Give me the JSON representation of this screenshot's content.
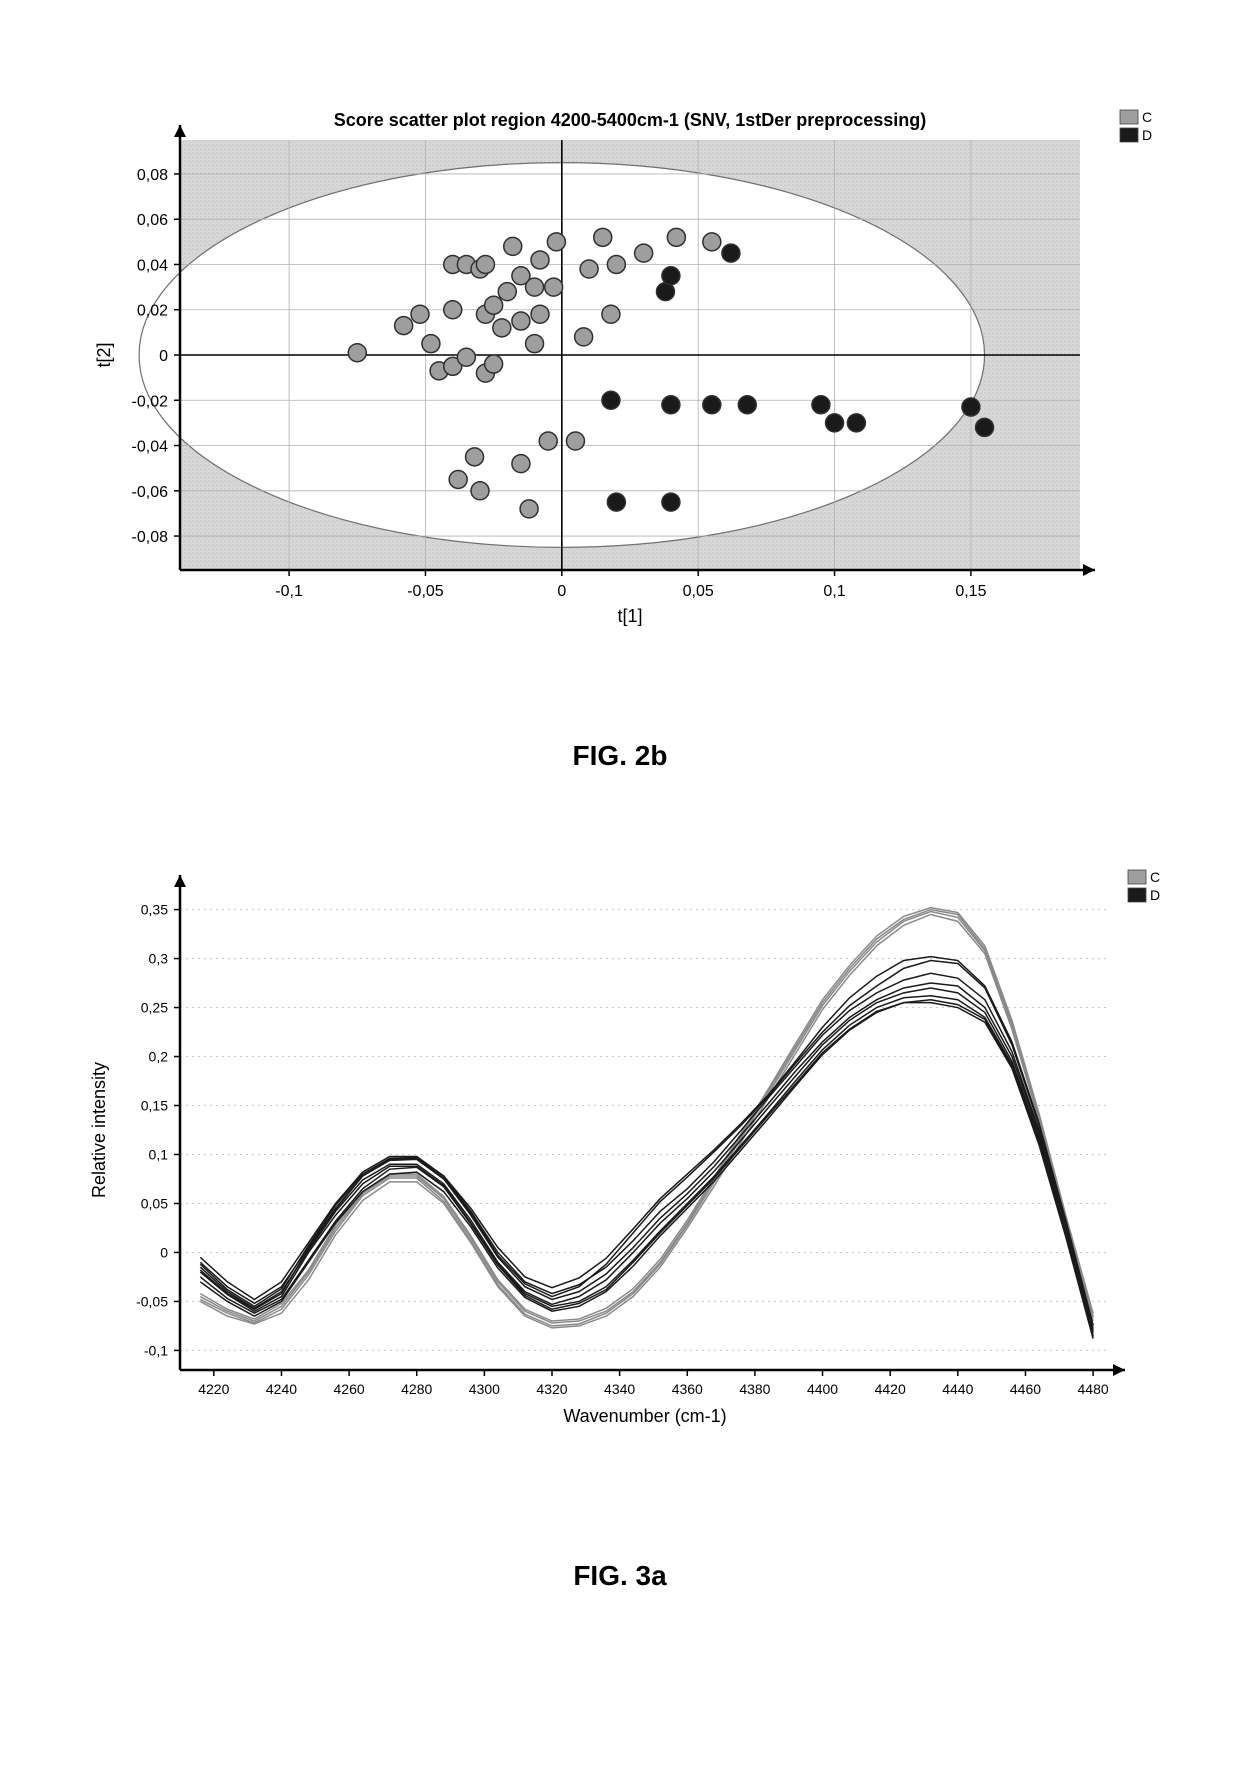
{
  "scatter": {
    "type": "scatter",
    "title": "Score scatter plot region 4200-5400cm-1 (SNV, 1stDer preprocessing)",
    "title_fontsize": 18,
    "title_fontweight": "bold",
    "xlabel": "t[1]",
    "ylabel": "t[2]",
    "label_fontsize": 18,
    "tick_fontsize": 16,
    "xlim": [
      -0.14,
      0.19
    ],
    "ylim": [
      -0.095,
      0.095
    ],
    "xticks": [
      -0.1,
      -0.05,
      0,
      0.05,
      0.1,
      0.15
    ],
    "xtick_labels": [
      "-0,1",
      "-0,05",
      "0",
      "0,05",
      "0,1",
      "0,15"
    ],
    "yticks": [
      -0.08,
      -0.06,
      -0.04,
      -0.02,
      0,
      0.02,
      0.04,
      0.06,
      0.08
    ],
    "ytick_labels": [
      "-0,08",
      "-0,06",
      "-0,04",
      "-0,02",
      "0",
      "0,02",
      "0,04",
      "0,06",
      "0,08"
    ],
    "background_color": "#d8d8d8",
    "ellipse_fill": "#ffffff",
    "ellipse_stroke": "#707070",
    "grid_color": "#b0b0b0",
    "axis_color": "#000000",
    "ellipse_rx": 0.155,
    "ellipse_ry": 0.085,
    "marker_radius": 9,
    "marker_stroke": "#303030",
    "marker_stroke_width": 1.5,
    "series": [
      {
        "label": "C",
        "color": "#9e9e9e",
        "points": [
          [
            -0.075,
            0.001
          ],
          [
            -0.058,
            0.013
          ],
          [
            -0.052,
            0.018
          ],
          [
            -0.048,
            0.005
          ],
          [
            -0.045,
            -0.007
          ],
          [
            -0.04,
            0.02
          ],
          [
            -0.04,
            -0.005
          ],
          [
            -0.04,
            0.04
          ],
          [
            -0.038,
            -0.055
          ],
          [
            -0.035,
            0.04
          ],
          [
            -0.035,
            -0.001
          ],
          [
            -0.032,
            -0.045
          ],
          [
            -0.03,
            0.038
          ],
          [
            -0.03,
            -0.06
          ],
          [
            -0.028,
            0.018
          ],
          [
            -0.028,
            -0.008
          ],
          [
            -0.028,
            0.04
          ],
          [
            -0.025,
            0.022
          ],
          [
            -0.025,
            -0.004
          ],
          [
            -0.022,
            0.012
          ],
          [
            -0.02,
            0.028
          ],
          [
            -0.018,
            0.048
          ],
          [
            -0.015,
            0.015
          ],
          [
            -0.015,
            0.035
          ],
          [
            -0.015,
            -0.048
          ],
          [
            -0.012,
            -0.068
          ],
          [
            -0.01,
            0.03
          ],
          [
            -0.01,
            0.005
          ],
          [
            -0.008,
            0.018
          ],
          [
            -0.008,
            0.042
          ],
          [
            -0.005,
            -0.038
          ],
          [
            -0.003,
            0.03
          ],
          [
            -0.002,
            0.05
          ],
          [
            0.005,
            -0.038
          ],
          [
            0.008,
            0.008
          ],
          [
            0.01,
            0.038
          ],
          [
            0.015,
            0.052
          ],
          [
            0.018,
            0.018
          ],
          [
            0.02,
            0.04
          ],
          [
            0.03,
            0.045
          ],
          [
            0.042,
            0.052
          ],
          [
            0.055,
            0.05
          ]
        ]
      },
      {
        "label": "D",
        "color": "#1a1a1a",
        "points": [
          [
            0.018,
            -0.02
          ],
          [
            0.02,
            -0.065
          ],
          [
            0.038,
            0.028
          ],
          [
            0.04,
            -0.022
          ],
          [
            0.04,
            0.035
          ],
          [
            0.04,
            -0.065
          ],
          [
            0.055,
            -0.022
          ],
          [
            0.062,
            0.045
          ],
          [
            0.068,
            -0.022
          ],
          [
            0.095,
            -0.022
          ],
          [
            0.1,
            -0.03
          ],
          [
            0.108,
            -0.03
          ],
          [
            0.15,
            -0.023
          ],
          [
            0.155,
            -0.032
          ]
        ]
      }
    ],
    "legend": {
      "items": [
        {
          "label": "C",
          "color": "#9e9e9e"
        },
        {
          "label": "D",
          "color": "#1a1a1a"
        }
      ]
    }
  },
  "spectra": {
    "type": "line",
    "xlabel": "Wavenumber (cm-1)",
    "ylabel": "Relative intensity",
    "label_fontsize": 18,
    "tick_fontsize": 14,
    "xlim": [
      4210,
      4485
    ],
    "ylim": [
      -0.12,
      0.37
    ],
    "xticks": [
      4220,
      4240,
      4260,
      4280,
      4300,
      4320,
      4340,
      4360,
      4380,
      4400,
      4420,
      4440,
      4460,
      4480
    ],
    "yticks": [
      -0.1,
      -0.05,
      0,
      0.05,
      0.1,
      0.15,
      0.2,
      0.25,
      0.3,
      0.35
    ],
    "ytick_labels": [
      "-0,1",
      "-0,05",
      "0",
      "0,05",
      "0,1",
      "0,15",
      "0,2",
      "0,25",
      "0,3",
      "0,35"
    ],
    "background_color": "#ffffff",
    "grid_color": "#c8c8c8",
    "axis_color": "#000000",
    "line_width": 1.5,
    "x_samples": [
      4216,
      4224,
      4232,
      4240,
      4248,
      4256,
      4264,
      4272,
      4280,
      4288,
      4296,
      4304,
      4312,
      4320,
      4328,
      4336,
      4344,
      4352,
      4360,
      4368,
      4376,
      4384,
      4392,
      4400,
      4408,
      4416,
      4424,
      4432,
      4440,
      4448,
      4456,
      4464,
      4472,
      4480
    ],
    "series": [
      {
        "label": "C",
        "color": "#8a8a8a",
        "y": [
          -0.045,
          -0.06,
          -0.07,
          -0.055,
          -0.02,
          0.025,
          0.06,
          0.078,
          0.078,
          0.055,
          0.015,
          -0.03,
          -0.06,
          -0.072,
          -0.07,
          -0.06,
          -0.04,
          -0.01,
          0.03,
          0.075,
          0.12,
          0.165,
          0.21,
          0.255,
          0.29,
          0.32,
          0.34,
          0.35,
          0.345,
          0.31,
          0.235,
          0.14,
          0.035,
          -0.065
        ]
      },
      {
        "label": "C",
        "color": "#8a8a8a",
        "y": [
          -0.048,
          -0.062,
          -0.072,
          -0.058,
          -0.023,
          0.022,
          0.058,
          0.076,
          0.076,
          0.052,
          0.012,
          -0.033,
          -0.063,
          -0.075,
          -0.073,
          -0.062,
          -0.042,
          -0.012,
          0.028,
          0.072,
          0.117,
          0.162,
          0.207,
          0.252,
          0.287,
          0.317,
          0.338,
          0.348,
          0.342,
          0.308,
          0.232,
          0.138,
          0.033,
          -0.067
        ]
      },
      {
        "label": "C",
        "color": "#8a8a8a",
        "y": [
          -0.05,
          -0.065,
          -0.073,
          -0.062,
          -0.028,
          0.018,
          0.053,
          0.072,
          0.072,
          0.05,
          0.01,
          -0.035,
          -0.065,
          -0.077,
          -0.075,
          -0.065,
          -0.045,
          -0.015,
          0.025,
          0.068,
          0.113,
          0.158,
          0.203,
          0.248,
          0.283,
          0.313,
          0.334,
          0.345,
          0.338,
          0.305,
          0.228,
          0.135,
          0.03,
          -0.07
        ]
      },
      {
        "label": "C",
        "color": "#8a8a8a",
        "y": [
          -0.042,
          -0.058,
          -0.068,
          -0.052,
          -0.018,
          0.028,
          0.062,
          0.08,
          0.08,
          0.057,
          0.017,
          -0.028,
          -0.058,
          -0.07,
          -0.068,
          -0.057,
          -0.037,
          -0.007,
          0.033,
          0.077,
          0.122,
          0.167,
          0.213,
          0.258,
          0.293,
          0.323,
          0.343,
          0.352,
          0.347,
          0.313,
          0.237,
          0.142,
          0.037,
          -0.062
        ]
      },
      {
        "label": "D",
        "color": "#1a1a1a",
        "y": [
          -0.01,
          -0.035,
          -0.052,
          -0.035,
          0.005,
          0.045,
          0.078,
          0.094,
          0.095,
          0.075,
          0.038,
          -0.005,
          -0.035,
          -0.048,
          -0.04,
          -0.022,
          0.005,
          0.035,
          0.06,
          0.088,
          0.12,
          0.152,
          0.185,
          0.215,
          0.24,
          0.258,
          0.27,
          0.275,
          0.272,
          0.25,
          0.2,
          0.122,
          0.025,
          -0.08
        ]
      },
      {
        "label": "D",
        "color": "#1a1a1a",
        "y": [
          -0.005,
          -0.03,
          -0.048,
          -0.03,
          0.01,
          0.05,
          0.082,
          0.098,
          0.098,
          0.078,
          0.042,
          0.0,
          -0.03,
          -0.042,
          -0.033,
          -0.015,
          0.012,
          0.042,
          0.065,
          0.093,
          0.125,
          0.158,
          0.19,
          0.222,
          0.247,
          0.265,
          0.278,
          0.285,
          0.28,
          0.258,
          0.205,
          0.125,
          0.028,
          -0.078
        ]
      },
      {
        "label": "D",
        "color": "#1a1a1a",
        "y": [
          -0.015,
          -0.04,
          -0.057,
          -0.04,
          0.002,
          0.042,
          0.074,
          0.09,
          0.09,
          0.07,
          0.033,
          -0.01,
          -0.04,
          -0.053,
          -0.045,
          -0.028,
          0.0,
          0.03,
          0.055,
          0.083,
          0.115,
          0.148,
          0.18,
          0.212,
          0.237,
          0.255,
          0.265,
          0.27,
          0.265,
          0.245,
          0.195,
          0.118,
          0.02,
          -0.082
        ]
      },
      {
        "label": "D",
        "color": "#1a1a1a",
        "y": [
          -0.02,
          -0.043,
          -0.06,
          -0.045,
          0.0,
          0.038,
          0.07,
          0.088,
          0.088,
          0.068,
          0.03,
          -0.012,
          -0.042,
          -0.055,
          -0.05,
          -0.035,
          -0.008,
          0.022,
          0.05,
          0.078,
          0.11,
          0.142,
          0.175,
          0.207,
          0.232,
          0.25,
          0.26,
          0.262,
          0.258,
          0.24,
          0.192,
          0.115,
          0.018,
          -0.085
        ]
      },
      {
        "label": "D",
        "color": "#1a1a1a",
        "y": [
          -0.03,
          -0.05,
          -0.065,
          -0.05,
          -0.01,
          0.03,
          0.062,
          0.08,
          0.082,
          0.062,
          0.026,
          -0.016,
          -0.046,
          -0.06,
          -0.055,
          -0.04,
          -0.014,
          0.017,
          0.045,
          0.073,
          0.105,
          0.137,
          0.17,
          0.202,
          0.227,
          0.245,
          0.255,
          0.255,
          0.25,
          0.235,
          0.188,
          0.11,
          0.015,
          -0.088
        ]
      },
      {
        "label": "D",
        "color": "#1a1a1a",
        "y": [
          -0.018,
          -0.042,
          -0.058,
          -0.042,
          0.004,
          0.044,
          0.078,
          0.095,
          0.096,
          0.076,
          0.04,
          -0.003,
          -0.032,
          -0.045,
          -0.035,
          -0.012,
          0.02,
          0.052,
          0.077,
          0.103,
          0.13,
          0.16,
          0.193,
          0.225,
          0.252,
          0.272,
          0.29,
          0.298,
          0.295,
          0.27,
          0.212,
          0.13,
          0.03,
          -0.075
        ]
      },
      {
        "label": "D",
        "color": "#1a1a1a",
        "y": [
          -0.025,
          -0.047,
          -0.062,
          -0.048,
          -0.008,
          0.032,
          0.065,
          0.085,
          0.087,
          0.067,
          0.029,
          -0.013,
          -0.044,
          -0.058,
          -0.052,
          -0.038,
          -0.01,
          0.02,
          0.048,
          0.076,
          0.108,
          0.14,
          0.172,
          0.204,
          0.228,
          0.246,
          0.255,
          0.258,
          0.253,
          0.238,
          0.19,
          0.112,
          0.016,
          -0.086
        ]
      },
      {
        "label": "D",
        "color": "#1a1a1a",
        "y": [
          -0.012,
          -0.038,
          -0.055,
          -0.037,
          0.007,
          0.048,
          0.08,
          0.096,
          0.097,
          0.078,
          0.045,
          0.005,
          -0.025,
          -0.036,
          -0.026,
          -0.006,
          0.024,
          0.055,
          0.08,
          0.105,
          0.132,
          0.161,
          0.195,
          0.23,
          0.26,
          0.282,
          0.298,
          0.302,
          0.298,
          0.272,
          0.215,
          0.132,
          0.032,
          -0.074
        ]
      }
    ],
    "legend": {
      "items": [
        {
          "label": "C",
          "color": "#9e9e9e"
        },
        {
          "label": "D",
          "color": "#1a1a1a"
        }
      ]
    }
  },
  "labels": {
    "fig2b": "FIG. 2b",
    "fig3a": "FIG. 3a"
  }
}
